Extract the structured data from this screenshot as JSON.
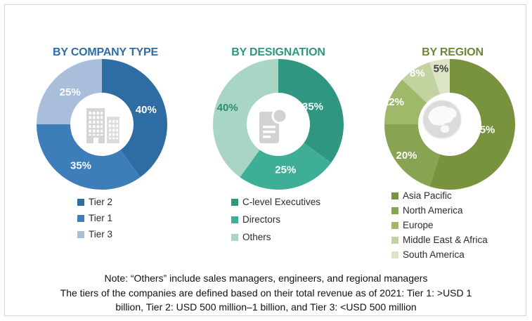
{
  "frame": {
    "border_color": "#d6d6d6",
    "background": "#ffffff"
  },
  "note": {
    "lines": [
      "Note: “Others” include sales managers, engineers, and regional managers",
      "The tiers of the companies are defined based on their total revenue as of 2021: Tier 1: >USD 1",
      "billion, Tier 2: USD 500 million–1 billion, and Tier 3: <USD 500 million"
    ]
  },
  "chart_data": [
    {
      "type": "pie",
      "donut": true,
      "title": "BY COMPANY TYPE",
      "title_color": "#2e6da4",
      "center_icon": "building-icon",
      "units": "percent",
      "legend_position": "bottom-left",
      "segments": [
        {
          "label": "Tier 2",
          "value": 40,
          "color": "#2e6da4",
          "label_color": "#ffffff"
        },
        {
          "label": "Tier 1",
          "value": 35,
          "color": "#3d7dba",
          "label_color": "#ffffff"
        },
        {
          "label": "Tier 3",
          "value": 25,
          "color": "#a8beda",
          "label_color": "#ffffff"
        }
      ]
    },
    {
      "type": "pie",
      "donut": true,
      "title": "BY DESIGNATION",
      "title_color": "#2f9681",
      "center_icon": "document-icon",
      "units": "percent",
      "legend_position": "bottom-left",
      "segments": [
        {
          "label": "C-level Executives",
          "value": 35,
          "color": "#2f9681",
          "label_color": "#ffffff"
        },
        {
          "label": "Directors",
          "value": 25,
          "color": "#3eae97",
          "label_color": "#ffffff"
        },
        {
          "label": "Others",
          "value": 40,
          "color": "#a9d5c5",
          "label_color": "#2f8a76"
        }
      ]
    },
    {
      "type": "pie",
      "donut": true,
      "title": "BY REGION",
      "title_color": "#6e8639",
      "center_icon": "globe-icon",
      "units": "percent",
      "legend_position": "bottom-left",
      "segments": [
        {
          "label": "Asia Pacific",
          "value": 55,
          "color": "#78923e",
          "label_color": "#ffffff"
        },
        {
          "label": "North America",
          "value": 20,
          "color": "#88a352",
          "label_color": "#ffffff"
        },
        {
          "label": "Europe",
          "value": 12,
          "color": "#9fb968",
          "label_color": "#ffffff"
        },
        {
          "label": "Middle East & Africa",
          "value": 8,
          "color": "#c3d3a0",
          "label_color": "#ffffff"
        },
        {
          "label": "South America",
          "value": 5,
          "color": "#dbe4c6",
          "label_color": "#3e3e3e"
        }
      ]
    }
  ]
}
